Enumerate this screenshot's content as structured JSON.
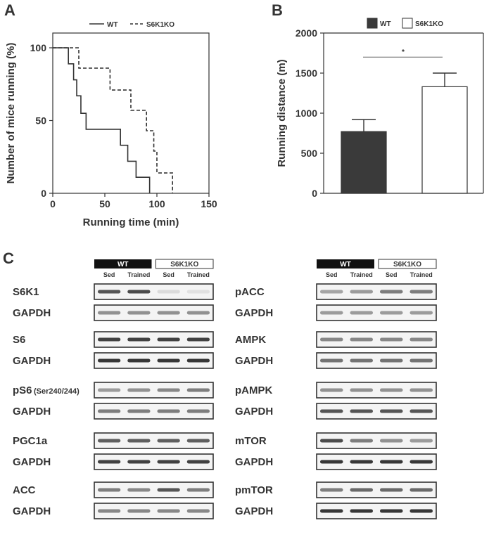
{
  "colors": {
    "ink": "#333333",
    "wt_bar": "#3a3a3a",
    "ko_bar": "#ffffff"
  },
  "panels": {
    "a": "A",
    "b": "B",
    "c": "C"
  },
  "chart_data": [
    {
      "type": "line",
      "panel": "A",
      "xlabel": "Running time (min)",
      "ylabel": "Number of mice running (%)",
      "xlim": [
        0,
        150
      ],
      "ylim": [
        0,
        100
      ],
      "xticks": [
        0,
        50,
        100,
        150
      ],
      "yticks": [
        0,
        50,
        100
      ],
      "legend_position": "top",
      "series": [
        {
          "name": "WT",
          "style": "solid",
          "x": [
            0,
            15,
            15,
            20,
            20,
            23,
            23,
            27,
            27,
            32,
            32,
            65,
            65,
            72,
            72,
            80,
            80,
            93,
            93
          ],
          "y": [
            100,
            100,
            89,
            89,
            78,
            78,
            67,
            67,
            55,
            55,
            44,
            44,
            33,
            33,
            22,
            22,
            11,
            11,
            0
          ]
        },
        {
          "name": "S6K1KO",
          "style": "dashed",
          "x": [
            0,
            25,
            25,
            40,
            40,
            55,
            55,
            75,
            75,
            90,
            90,
            97,
            97,
            100,
            100,
            104,
            104,
            115,
            115
          ],
          "y": [
            100,
            100,
            86,
            86,
            86,
            86,
            71,
            71,
            57,
            57,
            43,
            43,
            29,
            29,
            14,
            14,
            14,
            14,
            0
          ]
        }
      ]
    },
    {
      "type": "bar",
      "panel": "B",
      "categories": [
        "WT",
        "S6K1KO"
      ],
      "values": [
        770,
        1330
      ],
      "errors": [
        150,
        170
      ],
      "ylabel": "Running distance (m)",
      "ylim": [
        0,
        2000
      ],
      "yticks": [
        0,
        500,
        1000,
        1500,
        2000
      ],
      "legend_position": "top",
      "significance": {
        "label": "*",
        "y": 1700
      }
    }
  ],
  "blots": {
    "group_labels": {
      "wt": "WT",
      "ko": "S6K1KO"
    },
    "columns": [
      "Sed",
      "Trained",
      "Sed",
      "Trained"
    ],
    "left": [
      {
        "label": "S6K1",
        "sub": "",
        "intensity": [
          0.75,
          0.8,
          0.08,
          0.05
        ]
      },
      {
        "label": "GAPDH",
        "sub": "",
        "intensity": [
          0.45,
          0.45,
          0.45,
          0.45
        ]
      },
      {
        "label": "S6",
        "sub": "",
        "intensity": [
          0.85,
          0.85,
          0.85,
          0.85
        ]
      },
      {
        "label": "GAPDH",
        "sub": "",
        "intensity": [
          0.9,
          0.9,
          0.9,
          0.9
        ]
      },
      {
        "label": "pS6",
        "sub": "(Ser240/244)",
        "intensity": [
          0.4,
          0.45,
          0.5,
          0.55
        ]
      },
      {
        "label": "GAPDH",
        "sub": "",
        "intensity": [
          0.55,
          0.55,
          0.55,
          0.55
        ]
      },
      {
        "label": "PGC1a",
        "sub": "",
        "intensity": [
          0.7,
          0.7,
          0.7,
          0.7
        ]
      },
      {
        "label": "GAPDH",
        "sub": "",
        "intensity": [
          0.85,
          0.85,
          0.85,
          0.85
        ]
      },
      {
        "label": "ACC",
        "sub": "",
        "intensity": [
          0.55,
          0.5,
          0.75,
          0.55
        ]
      },
      {
        "label": "GAPDH",
        "sub": "",
        "intensity": [
          0.5,
          0.5,
          0.5,
          0.5
        ]
      }
    ],
    "right": [
      {
        "label": "pACC",
        "sub": "",
        "intensity": [
          0.35,
          0.4,
          0.55,
          0.55
        ]
      },
      {
        "label": "GAPDH",
        "sub": "",
        "intensity": [
          0.4,
          0.4,
          0.4,
          0.4
        ]
      },
      {
        "label": "AMPK",
        "sub": "",
        "intensity": [
          0.5,
          0.5,
          0.5,
          0.5
        ]
      },
      {
        "label": "GAPDH",
        "sub": "",
        "intensity": [
          0.6,
          0.6,
          0.6,
          0.6
        ]
      },
      {
        "label": "pAMPK",
        "sub": "",
        "intensity": [
          0.45,
          0.45,
          0.45,
          0.45
        ]
      },
      {
        "label": "GAPDH",
        "sub": "",
        "intensity": [
          0.75,
          0.75,
          0.75,
          0.75
        ]
      },
      {
        "label": "mTOR",
        "sub": "",
        "intensity": [
          0.8,
          0.55,
          0.45,
          0.4
        ]
      },
      {
        "label": "GAPDH",
        "sub": "",
        "intensity": [
          0.9,
          0.9,
          0.9,
          0.9
        ]
      },
      {
        "label": "pmTOR",
        "sub": "",
        "intensity": [
          0.55,
          0.65,
          0.65,
          0.65
        ]
      },
      {
        "label": "GAPDH",
        "sub": "",
        "intensity": [
          0.9,
          0.9,
          0.9,
          0.9
        ]
      }
    ]
  }
}
